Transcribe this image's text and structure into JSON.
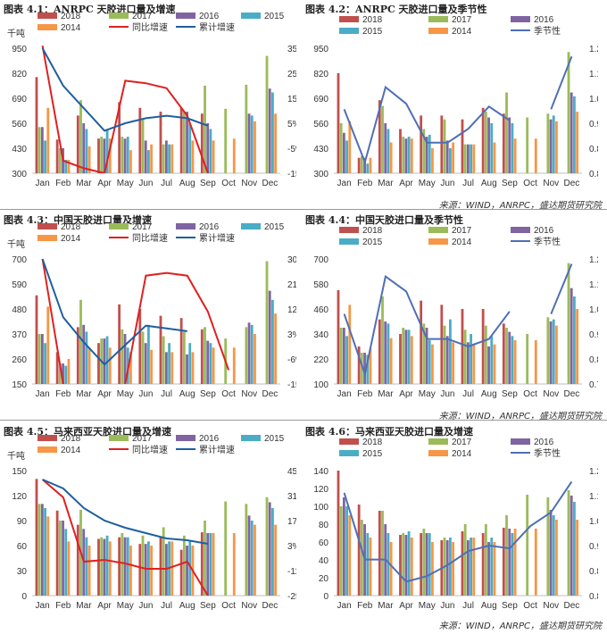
{
  "source_note": "来源：WIND，ANRPC，盛达期货研究院",
  "months": [
    "Jan",
    "Feb",
    "Mar",
    "Apr",
    "May",
    "Jun",
    "Jul",
    "Aug",
    "Sep",
    "Oct",
    "Nov",
    "Dec"
  ],
  "colors": {
    "2018": "#c0504d",
    "2017": "#9bbb59",
    "2016": "#8064a2",
    "2015": "#4bacc6",
    "2014": "#f79646",
    "yoy": "#e02020",
    "cum": "#1f5fa0",
    "seasonal": "#4f6fb5"
  },
  "chart_data": [
    {
      "id": "c1",
      "type": "bar",
      "title": "图表 4.1：ANRPC 天胶进口量及增速",
      "ylabel": "千吨",
      "ylim": [
        300,
        950
      ],
      "yticks": [
        "300",
        "430",
        "560",
        "690",
        "820",
        "950"
      ],
      "y2lim": [
        -15,
        35
      ],
      "y2ticks": [
        "-15%",
        "-5%",
        "5%",
        "15%",
        "25%",
        "35%"
      ],
      "legend": [
        "2018",
        "2017",
        "2016",
        "2015",
        "2014",
        "同比增速",
        "累计增速"
      ],
      "series": [
        {
          "name": "2018",
          "values": [
            800,
            475,
            600,
            480,
            670,
            640,
            620,
            640,
            610,
            null,
            null,
            null
          ]
        },
        {
          "name": "2017",
          "values": [
            540,
            430,
            680,
            490,
            490,
            580,
            450,
            620,
            755,
            635,
            760,
            910
          ]
        },
        {
          "name": "2016",
          "values": [
            540,
            430,
            560,
            480,
            480,
            470,
            470,
            620,
            560,
            null,
            610,
            740
          ]
        },
        {
          "name": "2015",
          "values": [
            470,
            370,
            530,
            530,
            490,
            420,
            450,
            560,
            530,
            null,
            600,
            720
          ]
        },
        {
          "name": "2014",
          "values": [
            640,
            370,
            440,
            480,
            420,
            450,
            450,
            470,
            470,
            480,
            570,
            610
          ]
        }
      ],
      "lines": [
        {
          "name": "同比增速",
          "axis": "right",
          "values": [
            36,
            -10,
            -13,
            -15,
            22,
            21,
            19,
            8,
            -15,
            null,
            null,
            null
          ]
        },
        {
          "name": "累计增速",
          "axis": "right",
          "values": [
            35,
            20,
            11,
            2,
            5,
            7,
            8,
            7,
            4,
            null,
            null,
            null
          ]
        }
      ]
    },
    {
      "id": "c2",
      "type": "bar",
      "title": "图表 4.2：ANRPC 天胶进口量及季节性",
      "ylabel": "",
      "ylim": [
        300,
        950
      ],
      "yticks": [
        "300",
        "430",
        "560",
        "690",
        "820",
        "950"
      ],
      "y2lim": [
        0.8,
        1.25
      ],
      "y2ticks": [
        "0.80",
        "0.89",
        "0.98",
        "1.07",
        "1.16",
        "1.25"
      ],
      "legend": [
        "2018",
        "2017",
        "2016",
        "2015",
        "2014",
        "季节性"
      ],
      "series": [
        {
          "name": "2018",
          "values": [
            820,
            380,
            680,
            530,
            600,
            600,
            580,
            640,
            610,
            null,
            null,
            null
          ]
        },
        {
          "name": "2017",
          "values": [
            560,
            390,
            650,
            490,
            530,
            580,
            450,
            620,
            720,
            590,
            610,
            930
          ]
        },
        {
          "name": "2016",
          "values": [
            510,
            380,
            560,
            480,
            490,
            470,
            450,
            590,
            590,
            null,
            580,
            720
          ]
        },
        {
          "name": "2015",
          "values": [
            470,
            350,
            530,
            490,
            500,
            430,
            450,
            560,
            560,
            null,
            600,
            700
          ]
        },
        {
          "name": "2014",
          "values": [
            570,
            380,
            460,
            480,
            430,
            460,
            450,
            460,
            480,
            480,
            570,
            620
          ]
        }
      ],
      "lines": [
        {
          "name": "季节性",
          "axis": "right",
          "values": [
            1.03,
            0.84,
            1.11,
            1.05,
            0.91,
            0.91,
            0.96,
            1.04,
            0.99,
            null,
            1.03,
            1.22
          ]
        }
      ]
    },
    {
      "id": "c3",
      "type": "bar",
      "title": "图表 4.3：中国天胶进口量及增速",
      "ylabel": "千吨",
      "ylim": [
        150,
        700
      ],
      "yticks": [
        "150",
        "260",
        "370",
        "480",
        "590",
        "700"
      ],
      "y2lim": [
        -15,
        30
      ],
      "y2ticks": [
        "-15%",
        "-6%",
        "3%",
        "12%",
        "21%",
        "30%"
      ],
      "legend": [
        "2018",
        "2017",
        "2016",
        "2015",
        "2014",
        "同比增速",
        "累计增速"
      ],
      "series": [
        {
          "name": "2018",
          "values": [
            540,
            290,
            400,
            330,
            500,
            480,
            450,
            440,
            390,
            null,
            null,
            null
          ]
        },
        {
          "name": "2017",
          "values": [
            370,
            240,
            520,
            350,
            390,
            380,
            360,
            380,
            400,
            350,
            400,
            690
          ]
        },
        {
          "name": "2016",
          "values": [
            370,
            240,
            410,
            350,
            370,
            330,
            290,
            280,
            340,
            null,
            420,
            560
          ]
        },
        {
          "name": "2015",
          "values": [
            330,
            230,
            380,
            360,
            310,
            410,
            330,
            330,
            330,
            null,
            410,
            520
          ]
        },
        {
          "name": "2014",
          "values": [
            490,
            260,
            310,
            310,
            290,
            300,
            290,
            290,
            310,
            310,
            370,
            460
          ]
        }
      ],
      "lines": [
        {
          "name": "同比增速",
          "axis": "right",
          "values": [
            30,
            -15,
            null,
            null,
            -15,
            24,
            25,
            24,
            11,
            -10,
            null,
            null
          ]
        },
        {
          "name": "累计增速",
          "axis": "right",
          "values": [
            30,
            9,
            0,
            -8,
            -1,
            6,
            5,
            4,
            null,
            null,
            null,
            null
          ]
        }
      ]
    },
    {
      "id": "c4",
      "type": "bar",
      "title": "图表 4.4：中国天胶进口量及季节性",
      "ylabel": "",
      "ylim": [
        100,
        700
      ],
      "yticks": [
        "100",
        "220",
        "340",
        "460",
        "580",
        "700"
      ],
      "y2lim": [
        0.75,
        1.25
      ],
      "y2ticks": [
        "0.75",
        "0.85",
        "0.95",
        "1.05",
        "1.15",
        "1.25"
      ],
      "legend": [
        "2018",
        "2017",
        "2016",
        "2015",
        "2014",
        "季节性"
      ],
      "series": [
        {
          "name": "2018",
          "values": [
            550,
            280,
            410,
            340,
            500,
            480,
            460,
            460,
            390,
            null,
            null,
            null
          ]
        },
        {
          "name": "2017",
          "values": [
            370,
            250,
            520,
            370,
            390,
            380,
            360,
            380,
            370,
            340,
            420,
            680
          ]
        },
        {
          "name": "2016",
          "values": [
            370,
            250,
            400,
            360,
            370,
            330,
            300,
            280,
            350,
            null,
            400,
            560
          ]
        },
        {
          "name": "2015",
          "values": [
            330,
            240,
            390,
            360,
            310,
            410,
            340,
            330,
            330,
            null,
            410,
            520
          ]
        },
        {
          "name": "2014",
          "values": [
            480,
            270,
            320,
            330,
            290,
            300,
            290,
            290,
            310,
            310,
            380,
            460
          ]
        }
      ],
      "lines": [
        {
          "name": "季节性",
          "axis": "right",
          "values": [
            1.03,
            0.79,
            1.18,
            1.12,
            0.93,
            0.93,
            0.9,
            0.93,
            1.04,
            null,
            1.03,
            1.23
          ]
        }
      ]
    },
    {
      "id": "c5",
      "type": "bar",
      "title": "图表 4.5：马来西亚天胶进口量及增速",
      "ylabel": "千吨",
      "ylim": [
        0,
        150
      ],
      "yticks": [
        "0",
        "30",
        "60",
        "90",
        "120",
        "150"
      ],
      "y2lim": [
        -25,
        45
      ],
      "y2ticks": [
        "-25%",
        "-11%",
        "3%",
        "17%",
        "31%",
        "45%"
      ],
      "legend": [
        "2018",
        "2017",
        "2016",
        "2015",
        "2014",
        "同比增速",
        "累计增速"
      ],
      "series": [
        {
          "name": "2018",
          "values": [
            140,
            102,
            85,
            68,
            70,
            62,
            70,
            55,
            76,
            null,
            null,
            null
          ]
        },
        {
          "name": "2017",
          "values": [
            110,
            90,
            103,
            70,
            75,
            72,
            82,
            72,
            90,
            113,
            110,
            118
          ]
        },
        {
          "name": "2016",
          "values": [
            110,
            90,
            80,
            68,
            70,
            62,
            62,
            60,
            75,
            null,
            96,
            112
          ]
        },
        {
          "name": "2015",
          "values": [
            105,
            80,
            70,
            72,
            70,
            65,
            65,
            65,
            75,
            null,
            90,
            105
          ]
        },
        {
          "name": "2014",
          "values": [
            95,
            65,
            60,
            65,
            60,
            60,
            65,
            60,
            75,
            75,
            85,
            85
          ]
        }
      ],
      "lines": [
        {
          "name": "同比增速",
          "axis": "right",
          "values": [
            40,
            30,
            -6,
            -5,
            -7,
            -10,
            -10,
            -6,
            -25,
            null,
            null,
            null
          ]
        },
        {
          "name": "累计增速",
          "axis": "right",
          "values": [
            40,
            35,
            24,
            17,
            13,
            10,
            7,
            6,
            4,
            null,
            null,
            null
          ]
        }
      ]
    },
    {
      "id": "c6",
      "type": "bar",
      "title": "图表 4.6：马来西亚天胶进口量及增速",
      "ylabel": "",
      "ylim": [
        0,
        140
      ],
      "yticks": [
        "0",
        "20",
        "40",
        "60",
        "80",
        "100",
        "120",
        "140"
      ],
      "y2lim": [
        0.8,
        1.25
      ],
      "y2ticks": [
        "0.80",
        "0.89",
        "0.98",
        "1.07",
        "1.16",
        "1.25"
      ],
      "legend": [
        "2018",
        "2017",
        "2016",
        "2015",
        "2014",
        "季节性"
      ],
      "series": [
        {
          "name": "2018",
          "values": [
            140,
            102,
            95,
            68,
            70,
            62,
            72,
            70,
            76,
            null,
            null,
            null
          ]
        },
        {
          "name": "2017",
          "values": [
            100,
            85,
            95,
            70,
            75,
            65,
            80,
            80,
            90,
            113,
            110,
            118
          ]
        },
        {
          "name": "2016",
          "values": [
            110,
            80,
            80,
            68,
            70,
            62,
            62,
            60,
            75,
            null,
            96,
            112
          ]
        },
        {
          "name": "2015",
          "values": [
            100,
            70,
            70,
            72,
            70,
            65,
            65,
            65,
            70,
            null,
            90,
            105
          ]
        },
        {
          "name": "2014",
          "values": [
            90,
            65,
            60,
            65,
            60,
            60,
            65,
            60,
            75,
            75,
            85,
            85
          ]
        }
      ],
      "lines": [
        {
          "name": "季节性",
          "axis": "right",
          "values": [
            1.17,
            0.93,
            0.93,
            0.85,
            0.87,
            0.91,
            0.96,
            0.98,
            0.97,
            1.05,
            1.1,
            1.21
          ]
        }
      ]
    }
  ]
}
